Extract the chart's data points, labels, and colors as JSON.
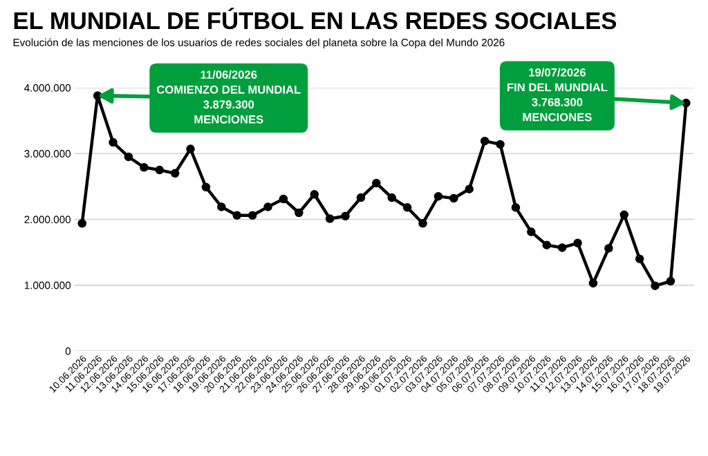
{
  "chart_data": {
    "type": "line",
    "title": "EL MUNDIAL DE FÚTBOL EN LAS REDES SOCIALES",
    "subtitle": "Evolución de las menciones de los usuarios de redes sociales del planeta sobre la Copa del Mundo 2026",
    "categories": [
      "10.06.2026",
      "11.06.2026",
      "12.06.2026",
      "13.06.2026",
      "14.06.2026",
      "15.06.2026",
      "16.06.2026",
      "17.06.2026",
      "18.06.2026",
      "19.06.2026",
      "20.06.2026",
      "21.06.2026",
      "22.06.2026",
      "23.06.2026",
      "24.06.2026",
      "25.06.2026",
      "26.06.2026",
      "27.06.2026",
      "28.06.2026",
      "29.06.2026",
      "30.06.2026",
      "01.07.2026",
      "02.07.2026",
      "03.07.2026",
      "04.07.2026",
      "05.07.2026",
      "06.07.2026",
      "07.07.2026",
      "08.07.2026",
      "09.07.2026",
      "10.07.2026",
      "11.07.2026",
      "12.07.2026",
      "13.07.2026",
      "14.07.2026",
      "15.07.2026",
      "16.07.2026",
      "17.07.2026",
      "18.07.2026",
      "19.07.2026"
    ],
    "series": [
      {
        "color": "#000000",
        "values": [
          1940000,
          3879300,
          3170000,
          2950000,
          2790000,
          2750000,
          2700000,
          3070000,
          2490000,
          2190000,
          2060000,
          2060000,
          2190000,
          2310000,
          2100000,
          2380000,
          2010000,
          2050000,
          2330000,
          2550000,
          2330000,
          2180000,
          1940000,
          2350000,
          2320000,
          2460000,
          3190000,
          3140000,
          2180000,
          1810000,
          1610000,
          1570000,
          1640000,
          1030000,
          1560000,
          2070000,
          1400000,
          990000,
          1060000,
          3768300
        ]
      }
    ],
    "ylim": [
      0,
      4000000
    ],
    "yticks": [
      {
        "value": 0,
        "label": "0"
      },
      {
        "value": 1000000,
        "label": "1.000.000"
      },
      {
        "value": 2000000,
        "label": "2.000.000"
      },
      {
        "value": 3000000,
        "label": "3.000.000"
      },
      {
        "value": 4000000,
        "label": "4.000.000"
      }
    ],
    "grid": "y",
    "marker": "circle",
    "line_style": "solid",
    "legend": false,
    "annotations": [
      {
        "text": "11/06/2026\nCOMIENZO DEL MUNDIAL\n3.879.300\nMENCIONES",
        "x": "11.06.2026",
        "y": 3879300
      },
      {
        "text": "19/07/2026\nFIN DEL MUNDIAL\n3.768.300\nMENCIONES",
        "x": "19.07.2026",
        "y": 3768300
      }
    ]
  }
}
